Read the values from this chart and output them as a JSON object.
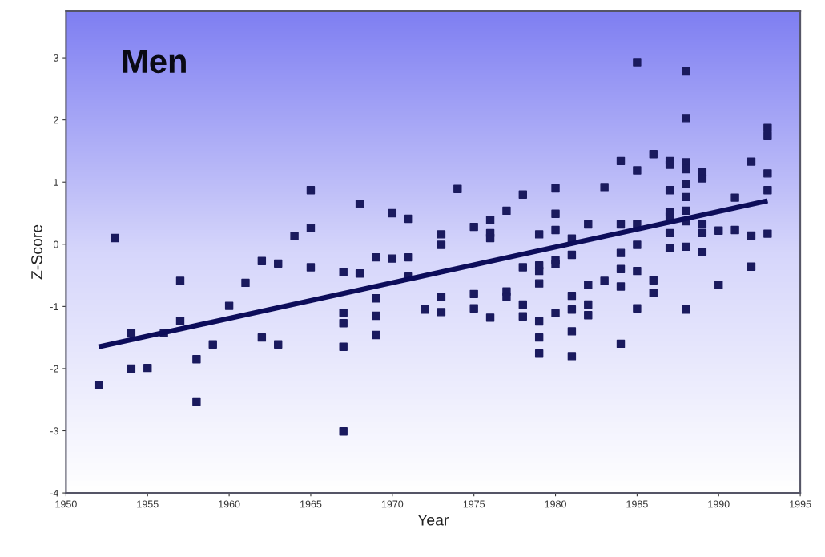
{
  "chart_data": {
    "type": "scatter",
    "xlabel": "Year",
    "ylabel": "Z-Score",
    "annotations": [
      "Men"
    ],
    "xlim": [
      1950,
      1995
    ],
    "xticks": [
      1950,
      1955,
      1960,
      1965,
      1970,
      1975,
      1980,
      1985,
      1990,
      1995
    ],
    "ylim": [
      -4,
      3.75
    ],
    "yticks": [
      -4,
      -3,
      -2,
      -1,
      0,
      1,
      2,
      3
    ],
    "grid": false,
    "series": [
      {
        "marker": "square",
        "color": "#1a1a5e",
        "x": [
          1952,
          1953,
          1954,
          1954,
          1955,
          1956,
          1957,
          1957,
          1958,
          1958,
          1959,
          1960,
          1961,
          1962,
          1962,
          1963,
          1963,
          1964,
          1965,
          1965,
          1965,
          1967,
          1967,
          1967,
          1967,
          1967,
          1968,
          1968,
          1969,
          1969,
          1969,
          1969,
          1970,
          1970,
          1971,
          1971,
          1971,
          1972,
          1973,
          1973,
          1973,
          1973,
          1974,
          1975,
          1975,
          1975,
          1976,
          1976,
          1976,
          1976,
          1977,
          1977,
          1977,
          1978,
          1978,
          1978,
          1978,
          1979,
          1979,
          1979,
          1979,
          1979,
          1979,
          1979,
          1980,
          1980,
          1980,
          1980,
          1980,
          1980,
          1981,
          1981,
          1981,
          1981,
          1981,
          1981,
          1982,
          1982,
          1982,
          1982,
          1983,
          1983,
          1984,
          1984,
          1984,
          1984,
          1984,
          1984,
          1985,
          1985,
          1985,
          1985,
          1985,
          1985,
          1986,
          1986,
          1986,
          1987,
          1987,
          1987,
          1987,
          1987,
          1987,
          1987,
          1988,
          1988,
          1988,
          1988,
          1988,
          1988,
          1988,
          1988,
          1988,
          1988,
          1989,
          1989,
          1989,
          1989,
          1989,
          1990,
          1990,
          1991,
          1991,
          1992,
          1992,
          1992,
          1993,
          1993,
          1993,
          1993,
          1993
        ],
        "values": [
          -2.27,
          0.1,
          -1.43,
          -2.0,
          -1.99,
          -1.43,
          -0.59,
          -1.23,
          -1.85,
          -2.53,
          -1.61,
          -0.99,
          -0.62,
          -0.27,
          -1.5,
          -0.31,
          -1.61,
          0.13,
          0.87,
          0.26,
          -0.37,
          -0.45,
          -1.1,
          -1.27,
          -1.65,
          -3.01,
          0.65,
          -0.47,
          -0.21,
          -0.87,
          -1.15,
          -1.46,
          0.5,
          -0.23,
          0.41,
          -0.21,
          -0.52,
          -1.05,
          0.16,
          -0.01,
          -0.85,
          -1.09,
          0.89,
          0.28,
          -0.8,
          -1.03,
          0.39,
          0.18,
          0.1,
          -1.18,
          0.54,
          -0.76,
          -0.84,
          0.8,
          -0.37,
          -0.97,
          -1.16,
          0.16,
          -0.34,
          -0.43,
          -0.63,
          -1.24,
          -1.5,
          -1.76,
          0.9,
          0.49,
          0.23,
          -0.26,
          -0.32,
          -1.11,
          0.09,
          -0.17,
          -0.83,
          -1.05,
          -1.4,
          -1.8,
          0.32,
          -0.65,
          -0.97,
          -1.14,
          0.92,
          -0.59,
          1.34,
          0.32,
          -0.14,
          -0.4,
          -0.68,
          -1.6,
          2.93,
          1.19,
          0.32,
          -0.01,
          -0.43,
          -1.03,
          1.45,
          -0.58,
          -0.78,
          1.34,
          1.28,
          0.87,
          0.52,
          0.45,
          0.18,
          -0.06,
          2.78,
          2.03,
          1.32,
          1.21,
          0.97,
          0.76,
          0.54,
          0.37,
          -0.04,
          -1.05,
          1.16,
          1.06,
          0.32,
          0.18,
          -0.12,
          0.22,
          -0.65,
          0.75,
          0.23,
          1.33,
          0.14,
          -0.36,
          1.87,
          1.74,
          1.14,
          0.87,
          0.17
        ]
      },
      {
        "type": "line",
        "color": "#0d0d5a",
        "x": [
          1952,
          1993
        ],
        "values": [
          -1.65,
          0.7
        ]
      }
    ]
  }
}
